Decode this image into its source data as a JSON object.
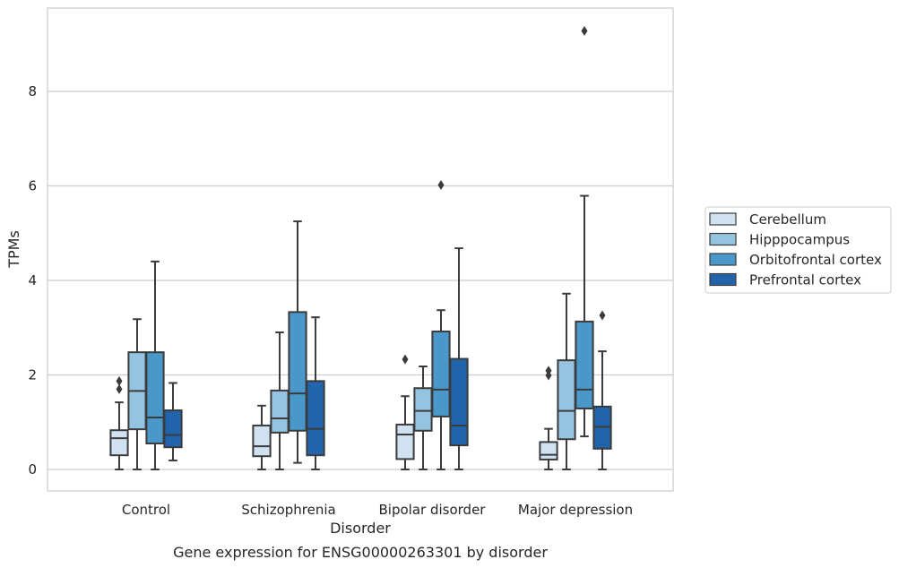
{
  "chart_data": {
    "type": "box",
    "caption": "Gene expression for ENSG00000263301 by disorder",
    "xlabel": "Disorder",
    "ylabel": "TPMs",
    "ylim": [
      -0.45,
      9.7
    ],
    "yticks": [
      "0",
      "2",
      "4",
      "6",
      "8"
    ],
    "grid": true,
    "legend_position": "right",
    "categories": [
      "Control",
      "Schizophrenia",
      "Bipolar disorder",
      "Major depression"
    ],
    "series": [
      {
        "name": "Cerebellum",
        "color": "#d0e1f2",
        "boxes": [
          {
            "min": 0.0,
            "q1": 0.3,
            "median": 0.66,
            "q3": 0.83,
            "max": 1.42,
            "outliers": [
              1.7,
              1.87
            ]
          },
          {
            "min": 0.0,
            "q1": 0.28,
            "median": 0.49,
            "q3": 0.93,
            "max": 1.35,
            "outliers": []
          },
          {
            "min": 0.0,
            "q1": 0.22,
            "median": 0.74,
            "q3": 0.95,
            "max": 1.55,
            "outliers": [
              2.33
            ]
          },
          {
            "min": 0.0,
            "q1": 0.21,
            "median": 0.31,
            "q3": 0.58,
            "max": 0.86,
            "outliers": [
              1.99,
              2.09
            ]
          }
        ]
      },
      {
        "name": "Hipppocampus",
        "color": "#94c4df",
        "boxes": [
          {
            "min": 0.0,
            "q1": 0.85,
            "median": 1.66,
            "q3": 2.48,
            "max": 3.18,
            "outliers": []
          },
          {
            "min": 0.0,
            "q1": 0.78,
            "median": 1.08,
            "q3": 1.67,
            "max": 2.9,
            "outliers": []
          },
          {
            "min": 0.0,
            "q1": 0.82,
            "median": 1.24,
            "q3": 1.72,
            "max": 2.18,
            "outliers": []
          },
          {
            "min": 0.0,
            "q1": 0.64,
            "median": 1.24,
            "q3": 2.31,
            "max": 3.72,
            "outliers": []
          }
        ]
      },
      {
        "name": "Orbitofrontal cortex",
        "color": "#4a98c9",
        "boxes": [
          {
            "min": 0.0,
            "q1": 0.55,
            "median": 1.1,
            "q3": 2.48,
            "max": 4.4,
            "outliers": []
          },
          {
            "min": 0.14,
            "q1": 0.82,
            "median": 1.61,
            "q3": 3.33,
            "max": 5.25,
            "outliers": []
          },
          {
            "min": 0.0,
            "q1": 1.12,
            "median": 1.69,
            "q3": 2.92,
            "max": 3.37,
            "outliers": [
              6.02
            ]
          },
          {
            "min": 0.7,
            "q1": 1.29,
            "median": 1.69,
            "q3": 3.13,
            "max": 5.79,
            "outliers": [
              9.28
            ]
          }
        ]
      },
      {
        "name": "Prefrontal cortex",
        "color": "#2164ab",
        "boxes": [
          {
            "min": 0.19,
            "q1": 0.47,
            "median": 0.73,
            "q3": 1.25,
            "max": 1.83,
            "outliers": []
          },
          {
            "min": 0.0,
            "q1": 0.3,
            "median": 0.86,
            "q3": 1.87,
            "max": 3.22,
            "outliers": []
          },
          {
            "min": 0.0,
            "q1": 0.51,
            "median": 0.93,
            "q3": 2.34,
            "max": 4.68,
            "outliers": []
          },
          {
            "min": 0.0,
            "q1": 0.44,
            "median": 0.9,
            "q3": 1.33,
            "max": 2.5,
            "outliers": [
              3.26
            ]
          }
        ]
      }
    ]
  }
}
